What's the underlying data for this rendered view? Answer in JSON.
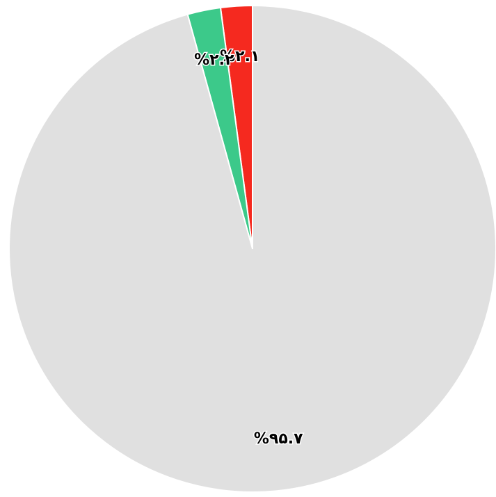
{
  "chart_data": {
    "type": "pie",
    "values": [
      2.1,
      2.2,
      95.7
    ],
    "value_labels": [
      "%۲.۱",
      "%۲.۲",
      "%۹۵.۷"
    ],
    "colors": [
      "#f5291f",
      "#3cc98a",
      "#e0e0e0"
    ]
  }
}
